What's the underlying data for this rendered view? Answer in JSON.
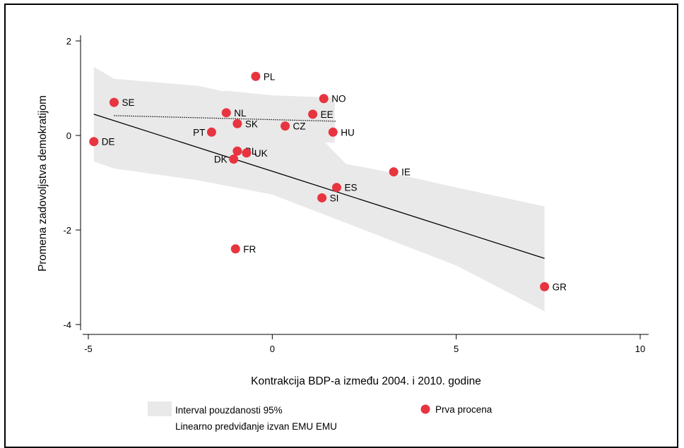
{
  "chart_data": {
    "type": "scatter",
    "xlabel": "Kontrakcija BDP-a između 2004. i 2010. godine",
    "ylabel": "Promena zadovoljstva demokratijom",
    "xlim": [
      -5,
      10
    ],
    "ylim": [
      -4,
      2
    ],
    "xticks": [
      -5,
      0,
      5,
      10
    ],
    "yticks": [
      2,
      0,
      -2,
      -4
    ],
    "grid": false,
    "legend_position": "bottom",
    "points": [
      {
        "label": "PL",
        "x": -0.45,
        "y": 1.25
      },
      {
        "label": "NO",
        "x": 1.4,
        "y": 0.78
      },
      {
        "label": "SE",
        "x": -4.3,
        "y": 0.7
      },
      {
        "label": "NL",
        "x": -1.25,
        "y": 0.48
      },
      {
        "label": "EE",
        "x": 1.1,
        "y": 0.45
      },
      {
        "label": "SK",
        "x": -0.95,
        "y": 0.25
      },
      {
        "label": "CZ",
        "x": 0.35,
        "y": 0.2
      },
      {
        "label": "PT",
        "x": -1.65,
        "y": 0.07
      },
      {
        "label": "HU",
        "x": 1.65,
        "y": 0.07
      },
      {
        "label": "DE",
        "x": -4.85,
        "y": -0.13
      },
      {
        "label": "BL",
        "x": -0.95,
        "y": -0.33
      },
      {
        "label": "UK",
        "x": -0.7,
        "y": -0.37
      },
      {
        "label": "DK",
        "x": -1.05,
        "y": -0.5
      },
      {
        "label": "IE",
        "x": 3.3,
        "y": -0.77
      },
      {
        "label": "ES",
        "x": 1.75,
        "y": -1.1
      },
      {
        "label": "SI",
        "x": 1.35,
        "y": -1.32
      },
      {
        "label": "FR",
        "x": -1.0,
        "y": -2.4
      },
      {
        "label": "GR",
        "x": 7.4,
        "y": -3.2
      }
    ],
    "fit_line": {
      "x": [
        -4.85,
        7.4
      ],
      "y": [
        0.45,
        -2.6
      ]
    },
    "ci_band": {
      "x": [
        -4.85,
        -4.3,
        -2.0,
        0.0,
        1.0,
        2.0,
        3.0,
        5.0,
        7.4
      ],
      "upper": [
        1.45,
        1.2,
        1.05,
        0.7,
        0.2,
        -0.6,
        -0.75,
        -1.1,
        -1.5
      ],
      "lower": [
        -0.55,
        -0.7,
        -0.95,
        -1.25,
        -1.55,
        -1.85,
        -2.15,
        -2.75,
        -3.72
      ]
    },
    "dotted_line": {
      "x": [
        -4.3,
        1.75
      ],
      "y": [
        0.42,
        0.3
      ]
    },
    "dotted_band": {
      "x": [
        -1.3,
        0.0,
        1.7
      ],
      "upper": [
        0.95,
        0.85,
        0.8
      ],
      "lower": [
        -0.15,
        -0.15,
        -0.15
      ]
    },
    "colors": {
      "point": "#e8343f",
      "band": "#e9e9e9",
      "line": "#000000"
    }
  },
  "legend": {
    "items": [
      {
        "key": "band",
        "label": "Interval pouzdanosti 95%"
      },
      {
        "key": "point",
        "label": "Prva procena"
      },
      {
        "key": "line",
        "label": "Linearno predviđanje izvan EMU EMU"
      }
    ]
  }
}
